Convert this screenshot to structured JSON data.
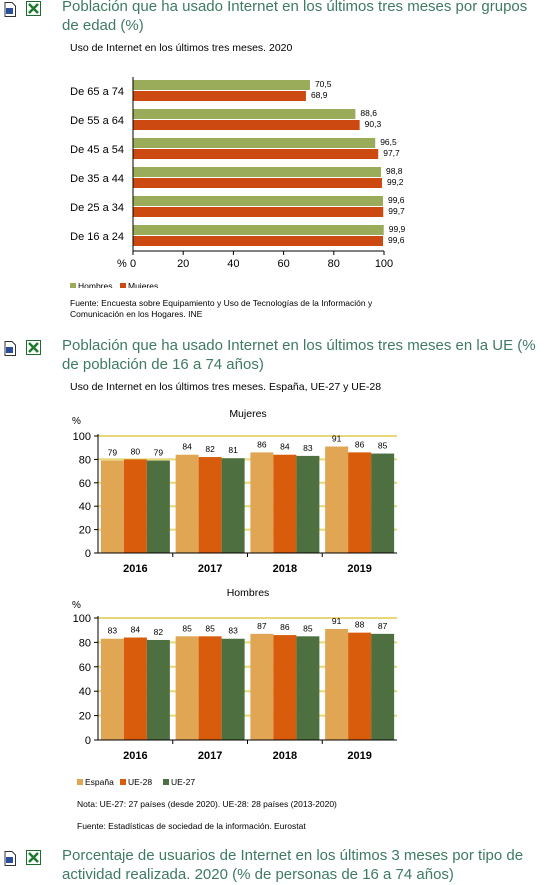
{
  "sections": [
    {
      "title": "Población que ha usado Internet en los últimos tres meses por grupos de edad (%)"
    },
    {
      "title": "Población que ha usado Internet en los últimos tres meses en la UE (% de población de 16 a 74 años)"
    },
    {
      "title": "Porcentaje de usuarios de Internet en los últimos 3 meses por tipo de actividad realizada. 2020 (% de personas de 16 a 74 años)"
    }
  ],
  "icons": {
    "document": "document-icon",
    "excel": "excel-icon"
  },
  "colors": {
    "title": "#3e7b60",
    "hombres": "#9aab5a",
    "mujeres": "#cc4a12",
    "espana": "#e1a653",
    "ue28": "#d85c0b",
    "ue27": "#4e7040",
    "grid": "#e6d77a"
  },
  "chart1": {
    "subtitle": "Uso de Internet en los últimos tres meses. 2020",
    "percent_label": "%",
    "source": "Fuente:  Encuesta sobre Equipamiento y Uso de Tecnologías de la Información y Comunicación en los Hogares. INE",
    "legend": [
      "Hombres",
      "Mujeres"
    ]
  },
  "chart2": {
    "subtitle": "Uso de Internet en los últimos tres meses. España, UE-27 y UE-28",
    "percent_label": "%",
    "panel_titles": [
      "Mujeres",
      "Hombres"
    ],
    "legend": [
      "España",
      "UE-28",
      "UE-27"
    ],
    "note": "Nota: UE-27: 27 países (desde 2020). UE-28: 28 países (2013-2020)",
    "source": "Fuente: Estadísticas de sociedad de la información. Eurostat"
  },
  "chart_data": [
    {
      "type": "bar",
      "orientation": "horizontal",
      "title": "Uso de Internet en los últimos tres meses. 2020",
      "categories": [
        "De 65 a 74",
        "De 55 a 64",
        "De 45 a 54",
        "De 35 a 44",
        "De 25 a 34",
        "De 16 a 24"
      ],
      "series": [
        {
          "name": "Hombres",
          "values": [
            70.5,
            88.6,
            96.5,
            98.8,
            99.6,
            99.9
          ],
          "labels": [
            "70,5",
            "88,6",
            "96,5",
            "98,8",
            "99,6",
            "99,9"
          ]
        },
        {
          "name": "Mujeres",
          "values": [
            68.9,
            90.3,
            97.7,
            99.2,
            99.7,
            99.6
          ],
          "labels": [
            "68,9",
            "90,3",
            "97,7",
            "99,2",
            "99,7",
            "99,6"
          ]
        }
      ],
      "xlim": [
        0,
        100
      ],
      "xticks": [
        "0",
        "20",
        "40",
        "60",
        "80",
        "100"
      ],
      "xlabel": "%",
      "legend": "bottom"
    },
    {
      "type": "bar",
      "title": "Mujeres",
      "categories": [
        "2016",
        "2017",
        "2018",
        "2019"
      ],
      "series": [
        {
          "name": "España",
          "values": [
            79,
            84,
            86,
            91
          ]
        },
        {
          "name": "UE-28",
          "values": [
            80,
            82,
            84,
            86
          ]
        },
        {
          "name": "UE-27",
          "values": [
            79,
            81,
            83,
            85
          ]
        }
      ],
      "ylim": [
        0,
        100
      ],
      "yticks": [
        "0",
        "20",
        "40",
        "60",
        "80",
        "100"
      ],
      "ylabel": "%",
      "grid": true
    },
    {
      "type": "bar",
      "title": "Hombres",
      "categories": [
        "2016",
        "2017",
        "2018",
        "2019"
      ],
      "series": [
        {
          "name": "España",
          "values": [
            83,
            85,
            87,
            91
          ]
        },
        {
          "name": "UE-28",
          "values": [
            84,
            85,
            86,
            88
          ]
        },
        {
          "name": "UE-27",
          "values": [
            82,
            83,
            85,
            87
          ]
        }
      ],
      "ylim": [
        0,
        100
      ],
      "yticks": [
        "0",
        "20",
        "40",
        "60",
        "80",
        "100"
      ],
      "ylabel": "%",
      "grid": true,
      "legend": "bottom"
    }
  ]
}
